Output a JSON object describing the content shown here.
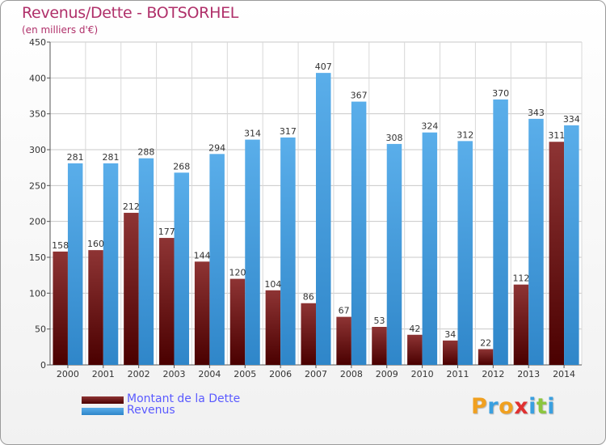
{
  "chart_data": {
    "type": "bar",
    "title": "Revenus/Dette - BOTSORHEL",
    "subtitle": "(en milliers d'€)",
    "categories": [
      "2000",
      "2001",
      "2002",
      "2003",
      "2004",
      "2005",
      "2006",
      "2007",
      "2008",
      "2009",
      "2010",
      "2011",
      "2012",
      "2013",
      "2014"
    ],
    "series": [
      {
        "name": "Montant de la Dette",
        "color": "#7a1c1c",
        "values": [
          158,
          160,
          212,
          177,
          144,
          120,
          104,
          86,
          67,
          53,
          42,
          34,
          22,
          112,
          311
        ]
      },
      {
        "name": "Revenus",
        "color": "#4ea3e3",
        "values": [
          281,
          281,
          288,
          268,
          294,
          314,
          317,
          407,
          367,
          308,
          324,
          312,
          370,
          343,
          334
        ]
      }
    ],
    "ylim": [
      0,
      450
    ],
    "yticks": [
      0,
      50,
      100,
      150,
      200,
      250,
      300,
      350,
      400,
      450
    ],
    "grid": true,
    "legend": "bottom-left"
  },
  "logo": {
    "letters": [
      {
        "char": "P",
        "color": "#f0a020"
      },
      {
        "char": "r",
        "color": "#3aa0e0"
      },
      {
        "char": "o",
        "color": "#f0a020"
      },
      {
        "char": "x",
        "color": "#e03030"
      },
      {
        "char": "i",
        "color": "#3aa0e0"
      },
      {
        "char": "t",
        "color": "#8cc63f"
      },
      {
        "char": "i",
        "color": "#3aa0e0"
      }
    ]
  }
}
